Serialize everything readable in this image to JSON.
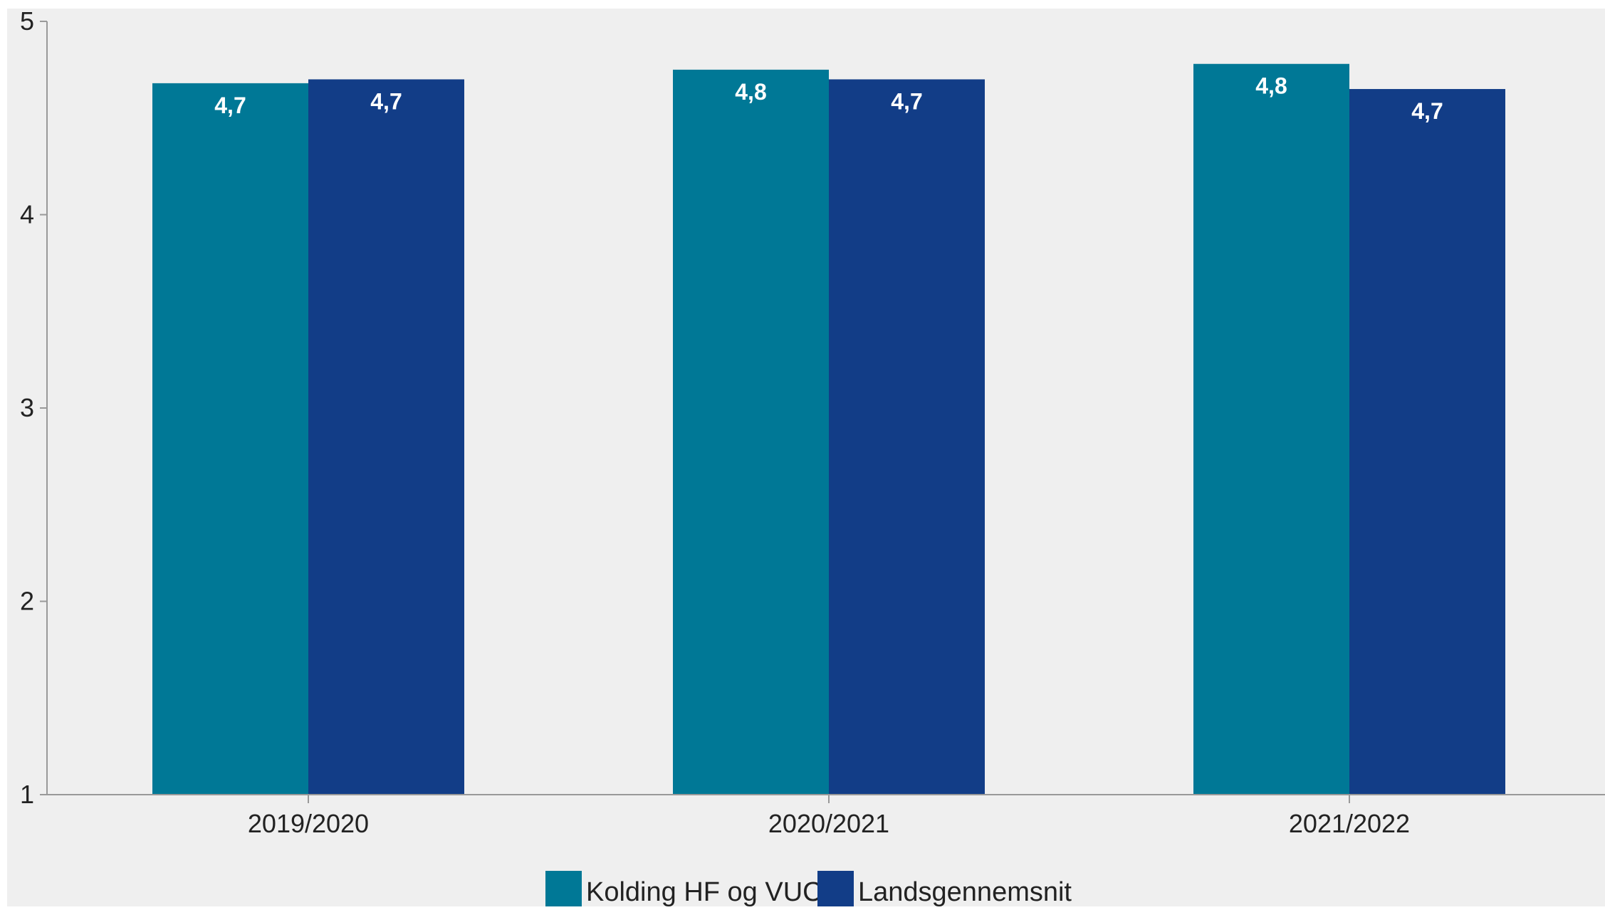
{
  "chart_data": {
    "type": "bar",
    "categories": [
      "2019/2020",
      "2020/2021",
      "2021/2022"
    ],
    "series": [
      {
        "name": "Kolding HF og VUC",
        "values": [
          4.68,
          4.75,
          4.78
        ],
        "labels": [
          "4,7",
          "4,8",
          "4,8"
        ],
        "color": "#007896"
      },
      {
        "name": "Landsgennemsnit",
        "values": [
          4.7,
          4.7,
          4.65
        ],
        "labels": [
          "4,7",
          "4,7",
          "4,7"
        ],
        "color": "#123D87"
      }
    ],
    "ylim": [
      1,
      5
    ],
    "yticks": [
      "1",
      "2",
      "3",
      "4",
      "5"
    ],
    "grid": false,
    "legend_position": "bottom-center",
    "title": "",
    "xlabel": "",
    "ylabel": "",
    "plot_background": "#EFEFEF",
    "axis_color": "#999999"
  }
}
